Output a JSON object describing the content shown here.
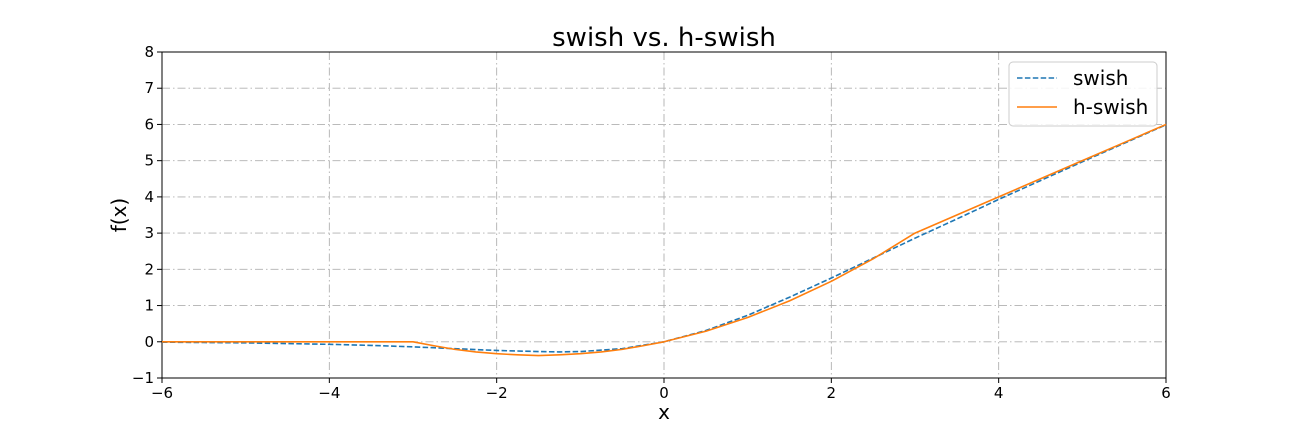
{
  "chart_data": {
    "type": "line",
    "title": "swish vs. h-swish",
    "xlabel": "x",
    "ylabel": "f(x)",
    "xlim": [
      -6,
      6
    ],
    "ylim": [
      -1,
      8
    ],
    "xticks": [
      -6,
      -4,
      -2,
      0,
      2,
      4,
      6
    ],
    "xtick_labels": [
      "−6",
      "−4",
      "−2",
      "0",
      "2",
      "4",
      "6"
    ],
    "yticks": [
      -1,
      0,
      1,
      2,
      3,
      4,
      5,
      6,
      7,
      8
    ],
    "ytick_labels": [
      "−1",
      "0",
      "1",
      "2",
      "3",
      "4",
      "5",
      "6",
      "7",
      "8"
    ],
    "grid": true,
    "legend_position": "upper right",
    "series": [
      {
        "name": "swish",
        "color": "#1f77b4",
        "style": "dashed",
        "x": [
          -6,
          -5.5,
          -5,
          -4.5,
          -4,
          -3.5,
          -3,
          -2.5,
          -2,
          -1.5,
          -1.25,
          -1,
          -0.5,
          0,
          0.5,
          1,
          1.5,
          2,
          2.5,
          3,
          3.5,
          4,
          4.5,
          5,
          5.5,
          6
        ],
        "y": [
          -0.01,
          -0.02,
          -0.03,
          -0.05,
          -0.07,
          -0.1,
          -0.14,
          -0.19,
          -0.24,
          -0.27,
          -0.28,
          -0.27,
          -0.19,
          0,
          0.31,
          0.73,
          1.23,
          1.76,
          2.31,
          2.86,
          3.39,
          3.93,
          4.45,
          4.97,
          5.48,
          5.99
        ]
      },
      {
        "name": "h-swish",
        "color": "#ff7f0e",
        "style": "solid",
        "x": [
          -6,
          -5,
          -4,
          -3,
          -2.75,
          -2.5,
          -2.25,
          -2,
          -1.75,
          -1.5,
          -1.25,
          -1,
          -0.75,
          -0.5,
          -0.25,
          0,
          0.5,
          1,
          1.5,
          2,
          2.5,
          3,
          3.5,
          4,
          4.5,
          5,
          5.5,
          6
        ],
        "y": [
          0,
          0,
          0,
          0,
          -0.11,
          -0.21,
          -0.28,
          -0.33,
          -0.36,
          -0.38,
          -0.36,
          -0.33,
          -0.28,
          -0.21,
          -0.11,
          0,
          0.29,
          0.67,
          1.13,
          1.67,
          2.29,
          3,
          3.5,
          4,
          4.5,
          5,
          5.5,
          6
        ]
      }
    ]
  }
}
